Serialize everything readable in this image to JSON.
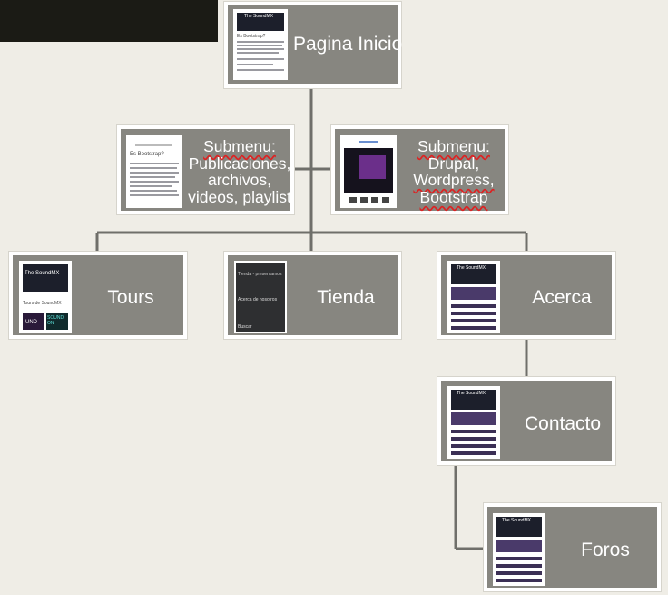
{
  "nodes": {
    "inicio": {
      "lines": [
        "Pagina Inicio"
      ]
    },
    "submenu1": {
      "lines": [
        "Submenu:",
        "Publicaciones,",
        "archivos,",
        "videos, playlist"
      ]
    },
    "submenu2": {
      "lines": [
        "Submenu:",
        "Drupal,",
        "Wordpress,",
        "Bootstrap"
      ]
    },
    "tours": {
      "lines": [
        "Tours"
      ]
    },
    "tienda": {
      "lines": [
        "Tienda"
      ]
    },
    "acerca": {
      "lines": [
        "Acerca"
      ]
    },
    "contacto": {
      "lines": [
        "Contacto"
      ]
    },
    "foros": {
      "lines": [
        "Foros"
      ]
    }
  },
  "thumbnails": {
    "inicio": {
      "brand": "The SoundMX",
      "heading": "Es Bootstrap?"
    },
    "submenu1": {
      "heading": "Es Bootstrap?"
    },
    "tours": {
      "brand": "The SoundMX",
      "caption": "Tours de SoundMX",
      "badge1": "UND",
      "badge2": "SOUND ON"
    },
    "tienda": {
      "line1": "Tienda - presentamos",
      "line2": "Acerca de nosotros",
      "line3": "Buscar"
    },
    "acerca": {
      "brand": "The SoundMX"
    },
    "contacto": {
      "brand": "The SoundMX"
    },
    "foros": {
      "brand": "The SoundMX"
    }
  },
  "colors": {
    "background": "#efede6",
    "node_fill": "#878680",
    "node_border": "#ffffff",
    "connector": "#6f6f6a",
    "label": "#ffffff",
    "spellcheck": "#dd2222"
  }
}
